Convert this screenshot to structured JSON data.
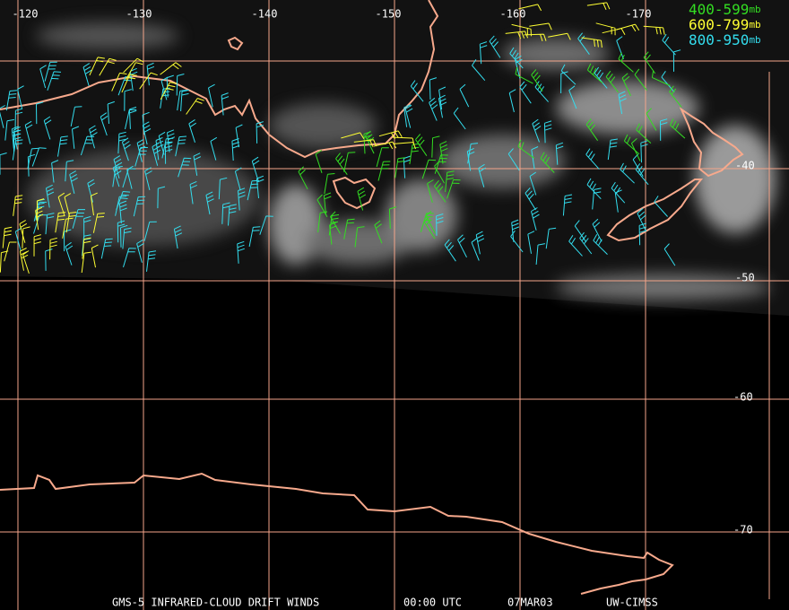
{
  "map": {
    "longitude_labels": [
      "-120",
      "-130",
      "-140",
      "-150",
      "-160",
      "-170"
    ],
    "latitude_labels": [
      "-40",
      "-50",
      "-60",
      "-70"
    ],
    "legend": [
      {
        "range": "400-599",
        "unit": "mb"
      },
      {
        "range": "600-799",
        "unit": "mb"
      },
      {
        "range": "800-950",
        "unit": "mb"
      }
    ],
    "footer": {
      "product": "GMS-5 INFRARED-CLOUD DRIFT WINDS",
      "time": "00:00 UTC",
      "date": "07MAR03",
      "source": "UW-CIMSS"
    }
  }
}
